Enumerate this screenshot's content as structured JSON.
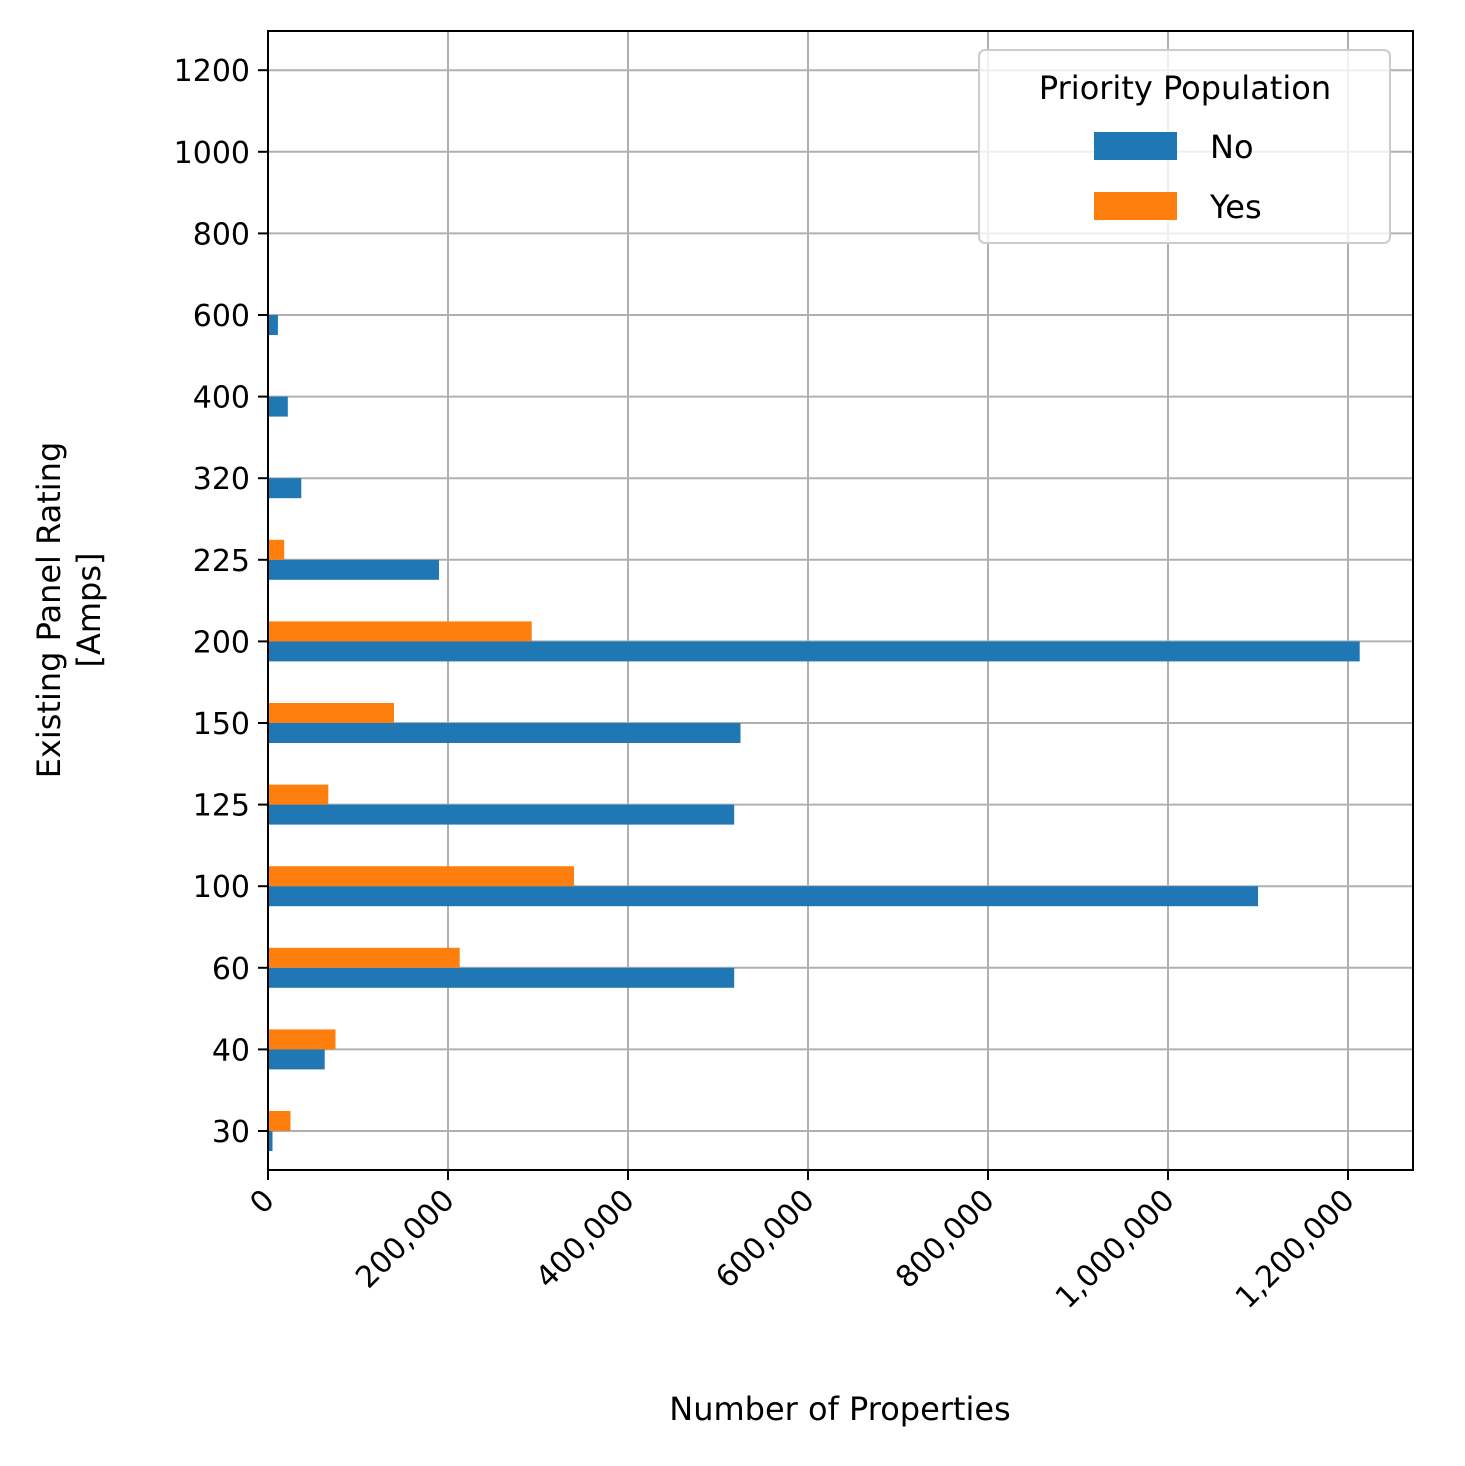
{
  "chart_data": {
    "type": "bar",
    "orientation": "horizontal",
    "categories": [
      "30",
      "40",
      "60",
      "100",
      "125",
      "150",
      "200",
      "225",
      "320",
      "400",
      "600",
      "800",
      "1000",
      "1200"
    ],
    "series": [
      {
        "name": "No",
        "color": "#1f77b4",
        "values": [
          5000,
          63000,
          518000,
          1100000,
          518000,
          525000,
          1213000,
          190000,
          37000,
          22000,
          11000,
          0,
          0,
          0
        ]
      },
      {
        "name": "Yes",
        "color": "#ff7f0e",
        "values": [
          25000,
          75000,
          213000,
          340000,
          67000,
          140000,
          293000,
          18000,
          0,
          0,
          0,
          0,
          0,
          0
        ]
      }
    ],
    "xlabel": "Number of Properties",
    "ylabel": [
      "Existing Panel Rating",
      "[Amps]"
    ],
    "xlim": [
      0,
      1275000
    ],
    "xticks": [
      0,
      200000,
      400000,
      600000,
      800000,
      1000000,
      1200000
    ],
    "xtick_labels": [
      "0",
      "200,000",
      "400,000",
      "600,000",
      "800,000",
      "1,000,000",
      "1,200,000"
    ],
    "grid": true,
    "legend": {
      "title": "Priority Population",
      "placement": "top-right"
    }
  }
}
